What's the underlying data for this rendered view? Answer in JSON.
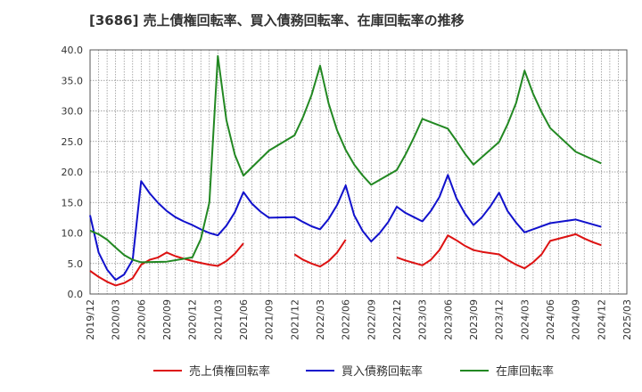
{
  "chart_data": {
    "type": "line",
    "title": "[3686]  売上債権回転率、買入債務回転率、在庫回転率の推移",
    "xlabel": "",
    "ylabel": "",
    "ylim": [
      0,
      40
    ],
    "yticks": [
      "0.0",
      "5.0",
      "10.0",
      "15.0",
      "20.0",
      "25.0",
      "30.0",
      "35.0",
      "40.0"
    ],
    "xlim": [
      "2019/12",
      "2025/03"
    ],
    "x_tick_labels": [
      "2019/12",
      "2020/03",
      "2020/06",
      "2020/09",
      "2020/12",
      "2021/03",
      "2021/06",
      "2021/09",
      "2021/12",
      "2022/03",
      "2022/06",
      "2022/09",
      "2022/12",
      "2023/03",
      "2023/06",
      "2023/09",
      "2023/12",
      "2024/03",
      "2024/06",
      "2024/09",
      "2024/12",
      "2025/03"
    ],
    "grid": true,
    "legend_position": "bottom",
    "series": [
      {
        "name": "売上債権回転率",
        "color": "#dd1111",
        "segments": [
          {
            "x": [
              "2019/12",
              "2020/01",
              "2020/02",
              "2020/03",
              "2020/04",
              "2020/05",
              "2020/06",
              "2020/07",
              "2020/08",
              "2020/09",
              "2020/10",
              "2020/11",
              "2020/12",
              "2021/01",
              "2021/02",
              "2021/03",
              "2021/04",
              "2021/05",
              "2021/06"
            ],
            "values": [
              3.8,
              2.8,
              2.0,
              1.4,
              1.8,
              2.6,
              4.8,
              5.6,
              6.0,
              6.8,
              6.2,
              5.8,
              5.4,
              5.1,
              4.8,
              4.6,
              5.4,
              6.6,
              8.3
            ]
          },
          {
            "x": [
              "2021/12",
              "2022/01",
              "2022/02",
              "2022/03",
              "2022/04",
              "2022/05",
              "2022/06"
            ],
            "values": [
              6.5,
              5.6,
              5.0,
              4.5,
              5.4,
              6.8,
              8.9
            ]
          },
          {
            "x": [
              "2022/12",
              "2023/01",
              "2023/02",
              "2023/03",
              "2023/04",
              "2023/05",
              "2023/06",
              "2023/07",
              "2023/08",
              "2023/09",
              "2023/10",
              "2023/11",
              "2023/12",
              "2024/01",
              "2024/02",
              "2024/03",
              "2024/04",
              "2024/05",
              "2024/06",
              "2024/09",
              "2024/10",
              "2024/11",
              "2024/12"
            ],
            "values": [
              6.0,
              5.5,
              5.1,
              4.7,
              5.6,
              7.2,
              9.6,
              8.8,
              7.9,
              7.2,
              6.9,
              6.7,
              6.5,
              5.6,
              4.8,
              4.2,
              5.2,
              6.5,
              8.7,
              9.8,
              9.1,
              8.5,
              8.0
            ]
          }
        ]
      },
      {
        "name": "買入債務回転率",
        "color": "#1111cc",
        "segments": [
          {
            "x": [
              "2019/12",
              "2020/01",
              "2020/02",
              "2020/03",
              "2020/04",
              "2020/05",
              "2020/06",
              "2020/07",
              "2020/08",
              "2020/09",
              "2020/10",
              "2020/11",
              "2020/12",
              "2021/01",
              "2021/02",
              "2021/03",
              "2021/04",
              "2021/05",
              "2021/06",
              "2021/07",
              "2021/08",
              "2021/09",
              "2021/12",
              "2022/01",
              "2022/02",
              "2022/03",
              "2022/04",
              "2022/05",
              "2022/06",
              "2022/07",
              "2022/08",
              "2022/09",
              "2022/10",
              "2022/11",
              "2022/12",
              "2023/01",
              "2023/02",
              "2023/03",
              "2023/04",
              "2023/05",
              "2023/06",
              "2023/07",
              "2023/08",
              "2023/09",
              "2023/10",
              "2023/11",
              "2023/12",
              "2024/01",
              "2024/02",
              "2024/03",
              "2024/06",
              "2024/09",
              "2024/12"
            ],
            "values": [
              12.9,
              6.8,
              4.0,
              2.3,
              3.2,
              5.6,
              18.5,
              16.5,
              14.9,
              13.6,
              12.6,
              11.9,
              11.3,
              10.6,
              10.0,
              9.6,
              11.2,
              13.4,
              16.7,
              14.8,
              13.5,
              12.5,
              12.6,
              11.8,
              11.1,
              10.6,
              12.3,
              14.6,
              17.8,
              12.9,
              10.3,
              8.6,
              10.0,
              11.8,
              14.3,
              13.3,
              12.6,
              11.9,
              13.6,
              15.9,
              19.5,
              15.7,
              13.2,
              11.3,
              12.6,
              14.4,
              16.6,
              13.6,
              11.7,
              10.1,
              11.6,
              12.2,
              11.0
            ]
          }
        ]
      },
      {
        "name": "在庫回転率",
        "color": "#228822",
        "segments": [
          {
            "x": [
              "2019/12",
              "2020/01",
              "2020/02",
              "2020/03",
              "2020/04",
              "2020/05",
              "2020/06",
              "2020/09",
              "2020/12",
              "2021/01",
              "2021/02",
              "2021/03",
              "2021/04",
              "2021/05",
              "2021/06",
              "2021/09",
              "2021/12",
              "2022/01",
              "2022/02",
              "2022/03",
              "2022/04",
              "2022/05",
              "2022/06",
              "2022/07",
              "2022/08",
              "2022/09",
              "2022/12",
              "2023/01",
              "2023/02",
              "2023/03",
              "2023/06",
              "2023/07",
              "2023/08",
              "2023/09",
              "2023/12",
              "2024/01",
              "2024/02",
              "2024/03",
              "2024/04",
              "2024/05",
              "2024/06",
              "2024/09",
              "2024/12"
            ],
            "values": [
              10.4,
              9.8,
              8.9,
              7.6,
              6.4,
              5.6,
              5.2,
              5.3,
              6.0,
              9.0,
              15.0,
              39.0,
              28.5,
              22.8,
              19.4,
              23.5,
              26.0,
              29.0,
              32.6,
              37.4,
              31.2,
              26.8,
              23.6,
              21.2,
              19.4,
              17.9,
              20.3,
              22.8,
              25.6,
              28.7,
              27.1,
              25.1,
              23.0,
              21.2,
              24.9,
              27.8,
              31.3,
              36.6,
              32.8,
              29.8,
              27.2,
              23.3,
              21.4
            ]
          }
        ]
      }
    ]
  }
}
